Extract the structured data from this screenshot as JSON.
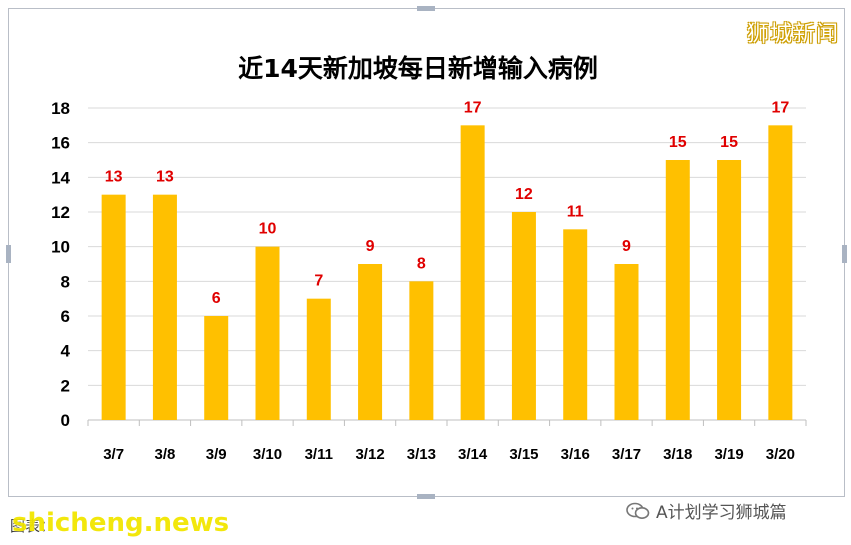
{
  "watermark_top": "狮城新闻",
  "source_prefix": "图表：",
  "site_watermark": "shicheng.news",
  "wechat_account": "A计划学习狮城篇",
  "icons": [
    "wechat-icon"
  ],
  "colors": {
    "bar": "#ffc000",
    "data_label": "#e00000",
    "grid": "#d9d9d9",
    "axis_text": "#000000"
  },
  "chart_data": {
    "type": "bar",
    "title": "近14天新加坡每日新增输入病例",
    "categories": [
      "3/7",
      "3/8",
      "3/9",
      "3/10",
      "3/11",
      "3/12",
      "3/13",
      "3/14",
      "3/15",
      "3/16",
      "3/17",
      "3/18",
      "3/19",
      "3/20"
    ],
    "values": [
      13,
      13,
      6,
      10,
      7,
      9,
      8,
      17,
      12,
      11,
      9,
      15,
      15,
      17
    ],
    "ylim": [
      0,
      18
    ],
    "yticks": [
      0,
      2,
      4,
      6,
      8,
      10,
      12,
      14,
      16,
      18
    ],
    "grid": "horizontal",
    "legend": "none"
  }
}
